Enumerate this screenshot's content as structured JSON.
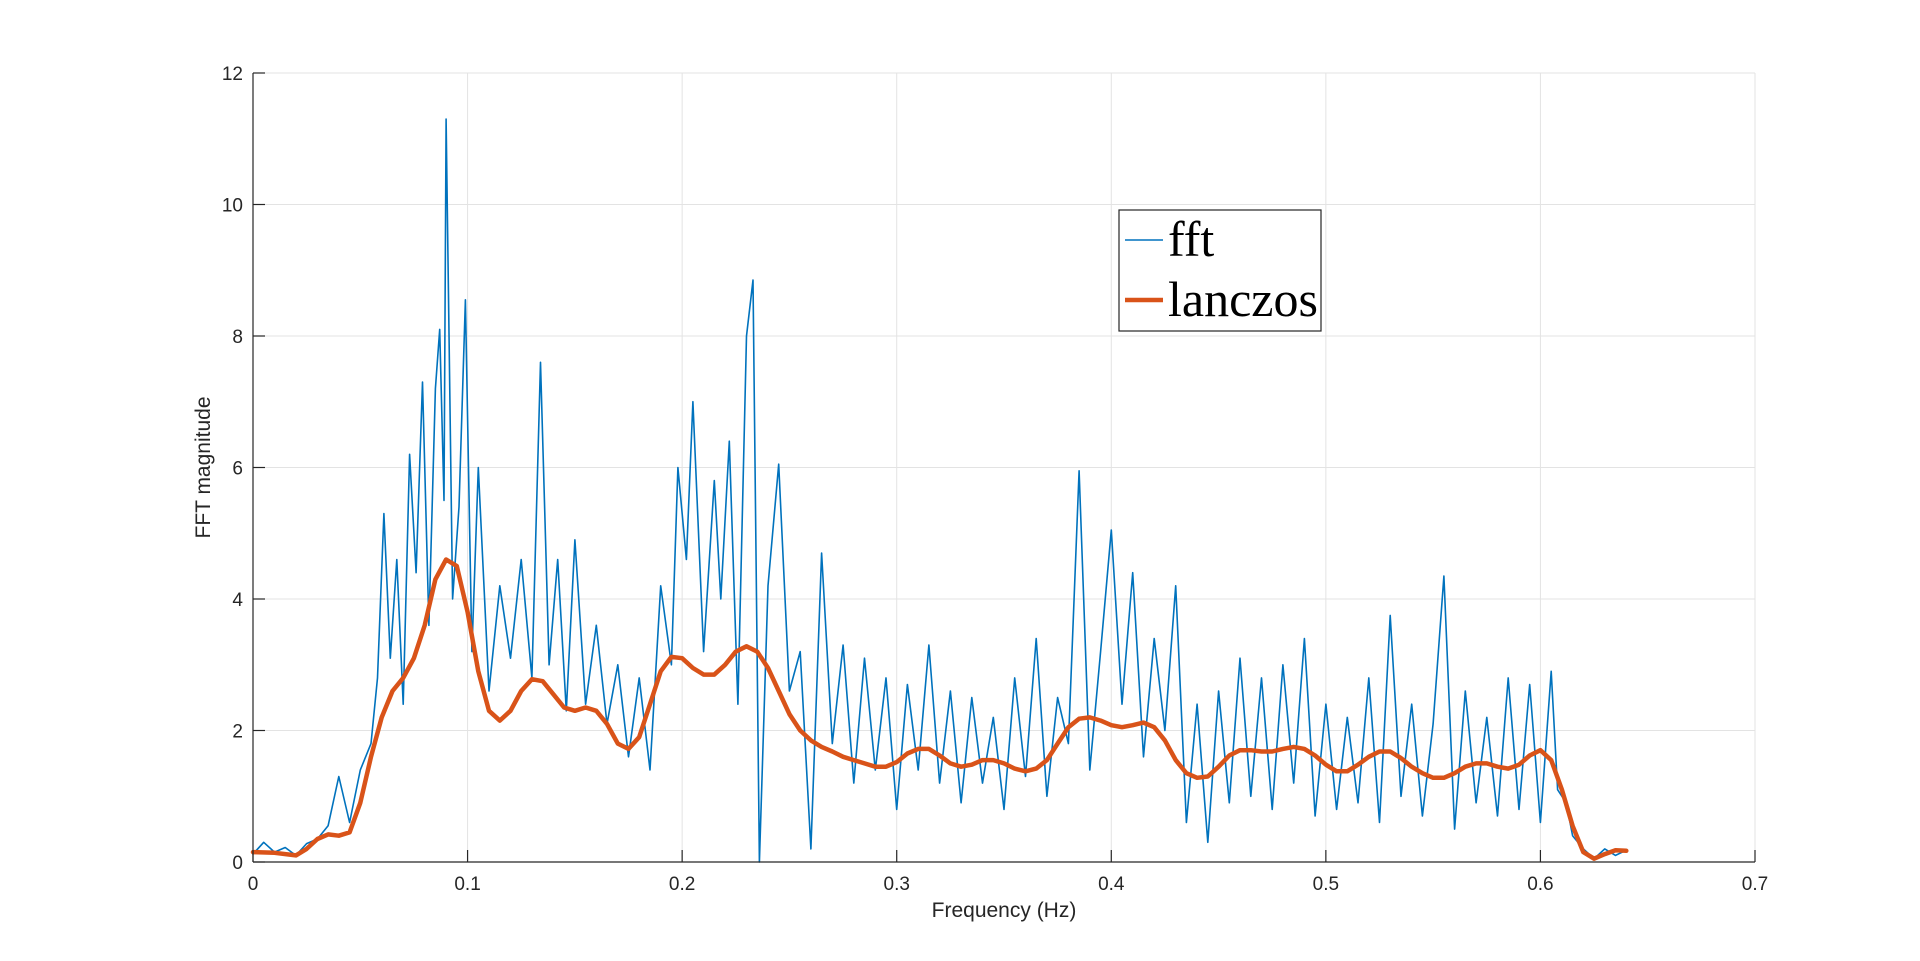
{
  "chart_data": {
    "type": "line",
    "title": "",
    "xlabel": "Frequency (Hz)",
    "ylabel": "FFT magnitude",
    "xlim": [
      0,
      0.7
    ],
    "ylim": [
      0,
      12
    ],
    "xticks": [
      0,
      0.1,
      0.2,
      0.3,
      0.4,
      0.5,
      0.6,
      0.7
    ],
    "xtick_labels": [
      "0",
      "0.1",
      "0.2",
      "0.3",
      "0.4",
      "0.5",
      "0.6",
      "0.7"
    ],
    "yticks": [
      0,
      2,
      4,
      6,
      8,
      10,
      12
    ],
    "ytick_labels": [
      "0",
      "2",
      "4",
      "6",
      "8",
      "10",
      "12"
    ],
    "grid": true,
    "legend_position": "top-center",
    "series": [
      {
        "name": "fft",
        "color": "#0072BD",
        "style": "thin-noisy",
        "x_range": [
          0,
          0.64
        ],
        "points": [
          [
            0.0,
            0.12
          ],
          [
            0.005,
            0.3
          ],
          [
            0.01,
            0.15
          ],
          [
            0.015,
            0.22
          ],
          [
            0.02,
            0.1
          ],
          [
            0.025,
            0.28
          ],
          [
            0.03,
            0.35
          ],
          [
            0.035,
            0.55
          ],
          [
            0.04,
            1.3
          ],
          [
            0.045,
            0.6
          ],
          [
            0.05,
            1.4
          ],
          [
            0.055,
            1.8
          ],
          [
            0.058,
            2.8
          ],
          [
            0.061,
            5.3
          ],
          [
            0.064,
            3.1
          ],
          [
            0.067,
            4.6
          ],
          [
            0.07,
            2.4
          ],
          [
            0.073,
            6.2
          ],
          [
            0.076,
            4.4
          ],
          [
            0.079,
            7.3
          ],
          [
            0.082,
            3.6
          ],
          [
            0.085,
            7.2
          ],
          [
            0.087,
            8.1
          ],
          [
            0.089,
            5.5
          ],
          [
            0.09,
            11.3
          ],
          [
            0.093,
            4.0
          ],
          [
            0.096,
            5.4
          ],
          [
            0.099,
            8.55
          ],
          [
            0.102,
            3.2
          ],
          [
            0.105,
            6.0
          ],
          [
            0.11,
            2.6
          ],
          [
            0.115,
            4.2
          ],
          [
            0.12,
            3.1
          ],
          [
            0.125,
            4.6
          ],
          [
            0.13,
            2.8
          ],
          [
            0.134,
            7.6
          ],
          [
            0.138,
            3.0
          ],
          [
            0.142,
            4.6
          ],
          [
            0.146,
            2.3
          ],
          [
            0.15,
            4.9
          ],
          [
            0.155,
            2.4
          ],
          [
            0.16,
            3.6
          ],
          [
            0.165,
            2.1
          ],
          [
            0.17,
            3.0
          ],
          [
            0.175,
            1.6
          ],
          [
            0.18,
            2.8
          ],
          [
            0.185,
            1.4
          ],
          [
            0.19,
            4.2
          ],
          [
            0.195,
            3.0
          ],
          [
            0.198,
            6.0
          ],
          [
            0.202,
            4.6
          ],
          [
            0.205,
            7.0
          ],
          [
            0.21,
            3.2
          ],
          [
            0.215,
            5.8
          ],
          [
            0.218,
            4.0
          ],
          [
            0.222,
            6.4
          ],
          [
            0.226,
            2.4
          ],
          [
            0.23,
            8.0
          ],
          [
            0.233,
            8.85
          ],
          [
            0.236,
            0.0
          ],
          [
            0.24,
            4.2
          ],
          [
            0.245,
            6.05
          ],
          [
            0.25,
            2.6
          ],
          [
            0.255,
            3.2
          ],
          [
            0.26,
            0.2
          ],
          [
            0.265,
            4.7
          ],
          [
            0.27,
            1.8
          ],
          [
            0.275,
            3.3
          ],
          [
            0.28,
            1.2
          ],
          [
            0.285,
            3.1
          ],
          [
            0.29,
            1.4
          ],
          [
            0.295,
            2.8
          ],
          [
            0.3,
            0.8
          ],
          [
            0.305,
            2.7
          ],
          [
            0.31,
            1.4
          ],
          [
            0.315,
            3.3
          ],
          [
            0.32,
            1.2
          ],
          [
            0.325,
            2.6
          ],
          [
            0.33,
            0.9
          ],
          [
            0.335,
            2.5
          ],
          [
            0.34,
            1.2
          ],
          [
            0.345,
            2.2
          ],
          [
            0.35,
            0.8
          ],
          [
            0.355,
            2.8
          ],
          [
            0.36,
            1.3
          ],
          [
            0.365,
            3.4
          ],
          [
            0.37,
            1.0
          ],
          [
            0.375,
            2.5
          ],
          [
            0.38,
            1.8
          ],
          [
            0.385,
            5.95
          ],
          [
            0.39,
            1.4
          ],
          [
            0.395,
            3.2
          ],
          [
            0.4,
            5.05
          ],
          [
            0.405,
            2.4
          ],
          [
            0.41,
            4.4
          ],
          [
            0.415,
            1.6
          ],
          [
            0.42,
            3.4
          ],
          [
            0.425,
            2.0
          ],
          [
            0.43,
            4.2
          ],
          [
            0.435,
            0.6
          ],
          [
            0.44,
            2.4
          ],
          [
            0.445,
            0.3
          ],
          [
            0.45,
            2.6
          ],
          [
            0.455,
            0.9
          ],
          [
            0.46,
            3.1
          ],
          [
            0.465,
            1.0
          ],
          [
            0.47,
            2.8
          ],
          [
            0.475,
            0.8
          ],
          [
            0.48,
            3.0
          ],
          [
            0.485,
            1.2
          ],
          [
            0.49,
            3.4
          ],
          [
            0.495,
            0.7
          ],
          [
            0.5,
            2.4
          ],
          [
            0.505,
            0.8
          ],
          [
            0.51,
            2.2
          ],
          [
            0.515,
            0.9
          ],
          [
            0.52,
            2.8
          ],
          [
            0.525,
            0.6
          ],
          [
            0.53,
            3.75
          ],
          [
            0.535,
            1.0
          ],
          [
            0.54,
            2.4
          ],
          [
            0.545,
            0.7
          ],
          [
            0.55,
            2.1
          ],
          [
            0.555,
            4.35
          ],
          [
            0.56,
            0.5
          ],
          [
            0.565,
            2.6
          ],
          [
            0.57,
            0.9
          ],
          [
            0.575,
            2.2
          ],
          [
            0.58,
            0.7
          ],
          [
            0.585,
            2.8
          ],
          [
            0.59,
            0.8
          ],
          [
            0.595,
            2.7
          ],
          [
            0.6,
            0.6
          ],
          [
            0.605,
            2.9
          ],
          [
            0.608,
            1.1
          ],
          [
            0.612,
            0.9
          ],
          [
            0.615,
            0.4
          ],
          [
            0.62,
            0.2
          ],
          [
            0.625,
            0.05
          ],
          [
            0.63,
            0.2
          ],
          [
            0.635,
            0.1
          ],
          [
            0.64,
            0.18
          ]
        ]
      },
      {
        "name": "lanczos",
        "color": "#D95319",
        "style": "thick-smooth",
        "points": [
          [
            0.0,
            0.15
          ],
          [
            0.01,
            0.14
          ],
          [
            0.02,
            0.1
          ],
          [
            0.025,
            0.2
          ],
          [
            0.03,
            0.35
          ],
          [
            0.035,
            0.42
          ],
          [
            0.04,
            0.4
          ],
          [
            0.045,
            0.45
          ],
          [
            0.05,
            0.9
          ],
          [
            0.055,
            1.6
          ],
          [
            0.06,
            2.2
          ],
          [
            0.065,
            2.6
          ],
          [
            0.07,
            2.8
          ],
          [
            0.075,
            3.1
          ],
          [
            0.08,
            3.6
          ],
          [
            0.085,
            4.3
          ],
          [
            0.09,
            4.6
          ],
          [
            0.095,
            4.5
          ],
          [
            0.1,
            3.8
          ],
          [
            0.105,
            2.9
          ],
          [
            0.11,
            2.3
          ],
          [
            0.115,
            2.15
          ],
          [
            0.12,
            2.3
          ],
          [
            0.125,
            2.6
          ],
          [
            0.13,
            2.78
          ],
          [
            0.135,
            2.75
          ],
          [
            0.14,
            2.55
          ],
          [
            0.145,
            2.35
          ],
          [
            0.15,
            2.3
          ],
          [
            0.155,
            2.35
          ],
          [
            0.16,
            2.3
          ],
          [
            0.165,
            2.1
          ],
          [
            0.17,
            1.8
          ],
          [
            0.175,
            1.72
          ],
          [
            0.18,
            1.9
          ],
          [
            0.185,
            2.4
          ],
          [
            0.19,
            2.9
          ],
          [
            0.195,
            3.12
          ],
          [
            0.2,
            3.1
          ],
          [
            0.205,
            2.95
          ],
          [
            0.21,
            2.85
          ],
          [
            0.215,
            2.85
          ],
          [
            0.22,
            3.0
          ],
          [
            0.225,
            3.2
          ],
          [
            0.23,
            3.28
          ],
          [
            0.235,
            3.2
          ],
          [
            0.24,
            2.95
          ],
          [
            0.245,
            2.6
          ],
          [
            0.25,
            2.25
          ],
          [
            0.255,
            2.0
          ],
          [
            0.26,
            1.85
          ],
          [
            0.265,
            1.75
          ],
          [
            0.27,
            1.68
          ],
          [
            0.275,
            1.6
          ],
          [
            0.28,
            1.55
          ],
          [
            0.285,
            1.5
          ],
          [
            0.29,
            1.45
          ],
          [
            0.295,
            1.45
          ],
          [
            0.3,
            1.52
          ],
          [
            0.305,
            1.65
          ],
          [
            0.31,
            1.72
          ],
          [
            0.315,
            1.72
          ],
          [
            0.32,
            1.62
          ],
          [
            0.325,
            1.5
          ],
          [
            0.33,
            1.45
          ],
          [
            0.335,
            1.48
          ],
          [
            0.34,
            1.55
          ],
          [
            0.345,
            1.55
          ],
          [
            0.35,
            1.5
          ],
          [
            0.355,
            1.42
          ],
          [
            0.36,
            1.38
          ],
          [
            0.365,
            1.42
          ],
          [
            0.37,
            1.55
          ],
          [
            0.375,
            1.8
          ],
          [
            0.38,
            2.05
          ],
          [
            0.385,
            2.18
          ],
          [
            0.39,
            2.2
          ],
          [
            0.395,
            2.15
          ],
          [
            0.4,
            2.08
          ],
          [
            0.405,
            2.05
          ],
          [
            0.41,
            2.08
          ],
          [
            0.415,
            2.12
          ],
          [
            0.42,
            2.05
          ],
          [
            0.425,
            1.85
          ],
          [
            0.43,
            1.55
          ],
          [
            0.435,
            1.35
          ],
          [
            0.44,
            1.28
          ],
          [
            0.445,
            1.3
          ],
          [
            0.45,
            1.45
          ],
          [
            0.455,
            1.62
          ],
          [
            0.46,
            1.7
          ],
          [
            0.465,
            1.7
          ],
          [
            0.47,
            1.68
          ],
          [
            0.475,
            1.68
          ],
          [
            0.48,
            1.72
          ],
          [
            0.485,
            1.75
          ],
          [
            0.49,
            1.72
          ],
          [
            0.495,
            1.62
          ],
          [
            0.5,
            1.48
          ],
          [
            0.505,
            1.38
          ],
          [
            0.51,
            1.38
          ],
          [
            0.515,
            1.48
          ],
          [
            0.52,
            1.6
          ],
          [
            0.525,
            1.68
          ],
          [
            0.53,
            1.68
          ],
          [
            0.535,
            1.58
          ],
          [
            0.54,
            1.45
          ],
          [
            0.545,
            1.35
          ],
          [
            0.55,
            1.28
          ],
          [
            0.555,
            1.28
          ],
          [
            0.56,
            1.35
          ],
          [
            0.565,
            1.45
          ],
          [
            0.57,
            1.5
          ],
          [
            0.575,
            1.5
          ],
          [
            0.58,
            1.45
          ],
          [
            0.585,
            1.42
          ],
          [
            0.59,
            1.48
          ],
          [
            0.595,
            1.62
          ],
          [
            0.6,
            1.7
          ],
          [
            0.605,
            1.55
          ],
          [
            0.61,
            1.1
          ],
          [
            0.615,
            0.55
          ],
          [
            0.62,
            0.15
          ],
          [
            0.625,
            0.05
          ],
          [
            0.63,
            0.12
          ],
          [
            0.635,
            0.18
          ],
          [
            0.64,
            0.17
          ]
        ]
      }
    ]
  }
}
